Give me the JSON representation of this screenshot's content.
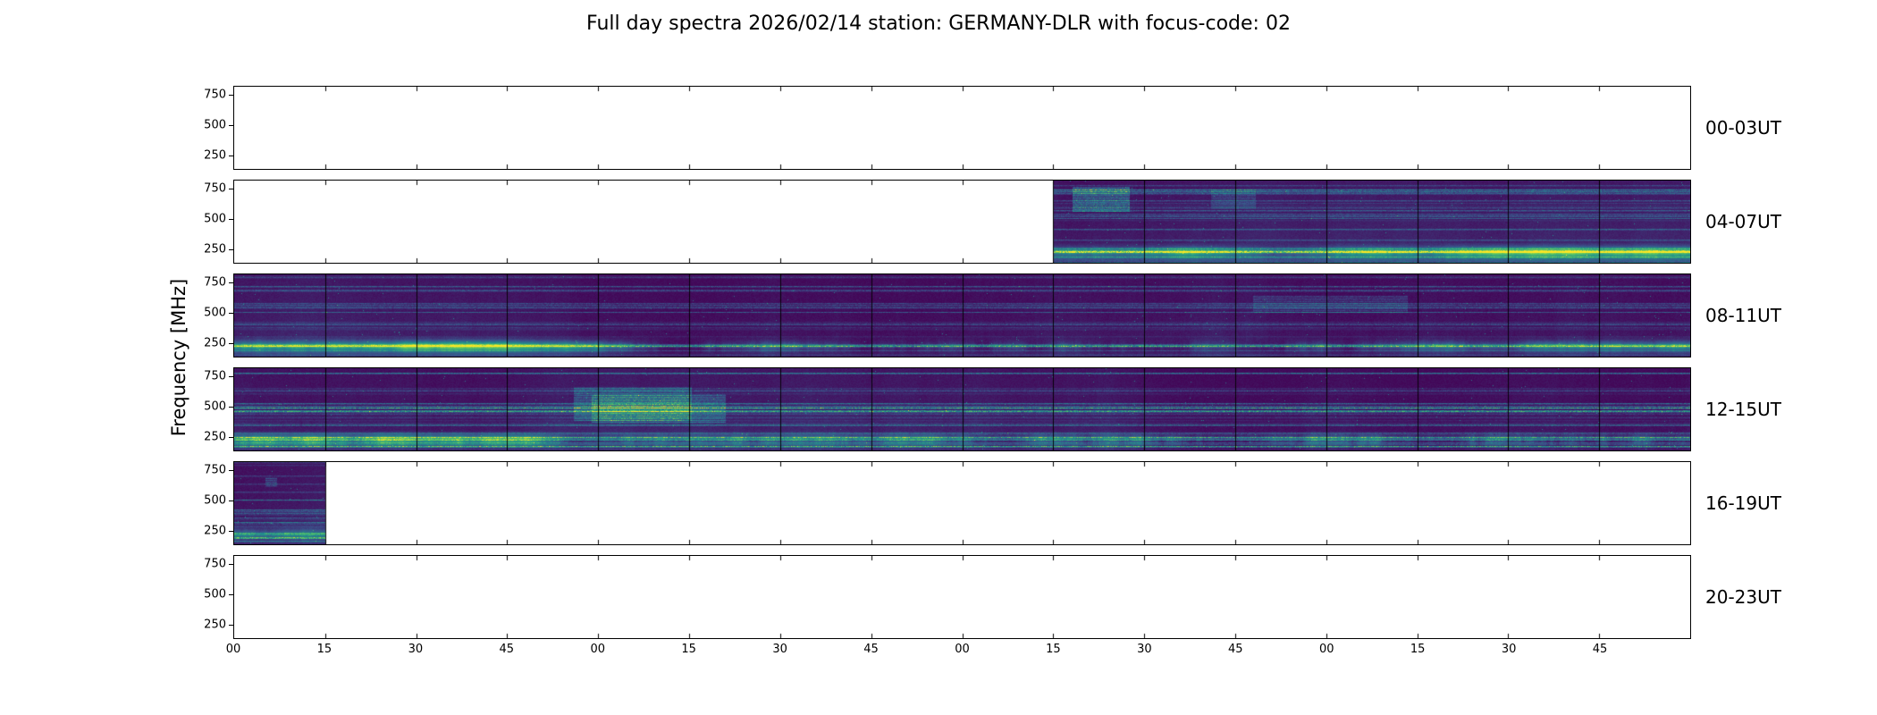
{
  "title": "Full day spectra 2026/02/14 station: GERMANY-DLR with focus-code: 02",
  "ylabel": "Frequency [MHz]",
  "chart_data": {
    "type": "heatmap",
    "colormap": "viridis",
    "colormap_stops": {
      "0": "#440154",
      "0.25": "#3b528b",
      "0.5": "#21918c",
      "0.75": "#5ec962",
      "1": "#fde725"
    },
    "empty_color": "#ffffff",
    "axis_color": "#000000",
    "y_ticks": [
      750,
      500,
      250
    ],
    "y_range_mhz": [
      140,
      820
    ],
    "segments_per_panel": 16,
    "segment_minutes": 15,
    "x_tick_labels": [
      "00",
      "15",
      "30",
      "45",
      "00",
      "15",
      "30",
      "45",
      "00",
      "15",
      "30",
      "45",
      "00",
      "15",
      "30",
      "45"
    ],
    "panels": [
      {
        "label": "00-03UT",
        "coverage": []
      },
      {
        "label": "04-07UT",
        "coverage": [
          [
            0.5625,
            1.0
          ]
        ],
        "activity": 0.95,
        "start_cluster": true
      },
      {
        "label": "08-11UT",
        "coverage": [
          [
            0.0,
            1.0
          ]
        ],
        "activity": 1.0
      },
      {
        "label": "12-15UT",
        "coverage": [
          [
            0.0,
            1.0
          ]
        ],
        "activity": 1.2
      },
      {
        "label": "16-19UT",
        "coverage": [
          [
            0.0,
            0.0625
          ]
        ],
        "activity": 0.95
      },
      {
        "label": "20-23UT",
        "coverage": []
      }
    ]
  }
}
